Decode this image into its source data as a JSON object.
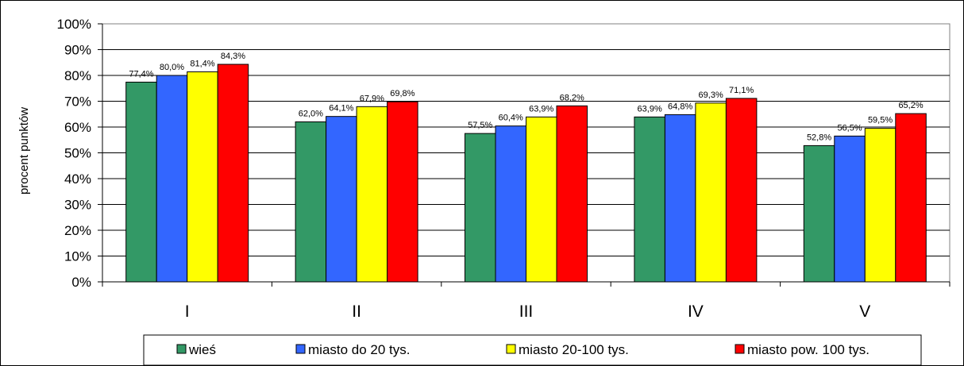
{
  "chart_data": {
    "type": "bar",
    "categories": [
      "I",
      "II",
      "III",
      "IV",
      "V"
    ],
    "ylabel": "procent punktów",
    "ylim": [
      0,
      100
    ],
    "yticks": [
      "0%",
      "10%",
      "20%",
      "30%",
      "40%",
      "50%",
      "60%",
      "70%",
      "80%",
      "90%",
      "100%"
    ],
    "grid": true,
    "legend_position": "bottom",
    "series": [
      {
        "name": "wieś",
        "color": "#339966",
        "values": [
          77.4,
          62.0,
          57.5,
          63.9,
          52.8
        ],
        "labels": [
          "77,4%",
          "62,0%",
          "57,5%",
          "63,9%",
          "52,8%"
        ]
      },
      {
        "name": "miasto do 20 tys.",
        "color": "#3366FF",
        "values": [
          80.0,
          64.1,
          60.4,
          64.8,
          56.5
        ],
        "labels": [
          "80,0%",
          "64,1%",
          "60,4%",
          "64,8%",
          "56,5%"
        ]
      },
      {
        "name": "miasto 20-100 tys.",
        "color": "#FFFF00",
        "values": [
          81.4,
          67.9,
          63.9,
          69.3,
          59.5
        ],
        "labels": [
          "81,4%",
          "67,9%",
          "63,9%",
          "69,3%",
          "59,5%"
        ]
      },
      {
        "name": "miasto pow. 100 tys.",
        "color": "#FF0000",
        "values": [
          84.3,
          69.8,
          68.2,
          71.1,
          65.2
        ],
        "labels": [
          "84,3%",
          "69,8%",
          "68,2%",
          "71,1%",
          "65,2%"
        ]
      }
    ]
  }
}
